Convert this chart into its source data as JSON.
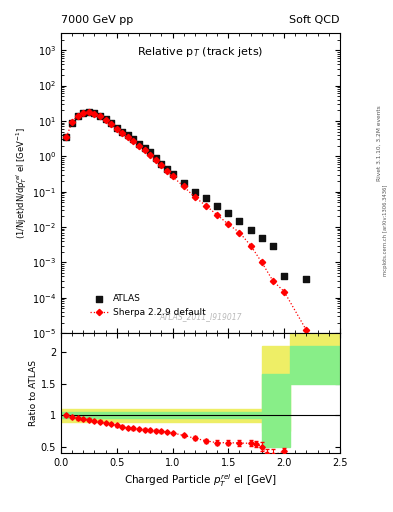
{
  "title_left": "7000 GeV pp",
  "title_right": "Soft QCD",
  "plot_title": "Relative p$_{T}$ (track jets)",
  "xlabel": "Charged Particle $p^{rel}_{T}$ el [GeV]",
  "ylabel_main": "(1/Njet)dN/dp$^{rel}_{T}$ el [GeV$^{-1}$]",
  "ylabel_ratio": "Ratio to ATLAS",
  "right_label1": "Rivet 3.1.10, 3.2M events",
  "right_label2": "mcplots.cern.ch [arXiv:1306.3436]",
  "watermark": "ATLAS_2011_I919017",
  "atlas_label": "ATLAS",
  "sherpa_label": "Sherpa 2.2.9 default",
  "atlas_x": [
    0.05,
    0.1,
    0.15,
    0.2,
    0.25,
    0.3,
    0.35,
    0.4,
    0.45,
    0.5,
    0.55,
    0.6,
    0.65,
    0.7,
    0.75,
    0.8,
    0.85,
    0.9,
    0.95,
    1.0,
    1.1,
    1.2,
    1.3,
    1.4,
    1.5,
    1.6,
    1.7,
    1.8,
    1.9,
    2.0,
    2.2
  ],
  "atlas_y": [
    3.5,
    9.0,
    14.0,
    17.0,
    17.5,
    16.5,
    14.0,
    11.0,
    8.5,
    6.5,
    5.0,
    4.0,
    3.0,
    2.2,
    1.7,
    1.3,
    0.9,
    0.6,
    0.45,
    0.32,
    0.18,
    0.1,
    0.065,
    0.04,
    0.025,
    0.015,
    0.008,
    0.005,
    0.003,
    0.0004,
    0.00035
  ],
  "sherpa_x": [
    0.05,
    0.1,
    0.15,
    0.2,
    0.25,
    0.3,
    0.35,
    0.4,
    0.45,
    0.5,
    0.55,
    0.6,
    0.65,
    0.7,
    0.75,
    0.8,
    0.85,
    0.9,
    0.95,
    1.0,
    1.1,
    1.2,
    1.3,
    1.4,
    1.5,
    1.6,
    1.7,
    1.8,
    1.9,
    2.0,
    2.2
  ],
  "sherpa_y": [
    3.5,
    9.5,
    14.0,
    17.0,
    17.5,
    16.0,
    13.5,
    10.5,
    8.0,
    6.0,
    4.5,
    3.5,
    2.7,
    2.0,
    1.5,
    1.1,
    0.8,
    0.55,
    0.38,
    0.27,
    0.14,
    0.07,
    0.04,
    0.022,
    0.012,
    0.007,
    0.003,
    0.001,
    0.0003,
    0.00015,
    1.2e-05
  ],
  "ratio_x": [
    0.05,
    0.1,
    0.15,
    0.2,
    0.25,
    0.3,
    0.35,
    0.4,
    0.45,
    0.5,
    0.55,
    0.6,
    0.65,
    0.7,
    0.75,
    0.8,
    0.85,
    0.9,
    0.95,
    1.0,
    1.1,
    1.2,
    1.3,
    1.4,
    1.5,
    1.6,
    1.7,
    1.75,
    1.8,
    1.85,
    1.9,
    2.0
  ],
  "ratio_y": [
    1.0,
    0.97,
    0.95,
    0.94,
    0.93,
    0.91,
    0.9,
    0.88,
    0.86,
    0.84,
    0.82,
    0.8,
    0.79,
    0.78,
    0.77,
    0.76,
    0.755,
    0.745,
    0.735,
    0.72,
    0.68,
    0.635,
    0.595,
    0.565,
    0.565,
    0.56,
    0.555,
    0.545,
    0.5,
    0.38,
    0.37,
    0.43
  ],
  "ratio_yerr": [
    0.02,
    0.02,
    0.02,
    0.02,
    0.02,
    0.02,
    0.02,
    0.02,
    0.02,
    0.02,
    0.02,
    0.02,
    0.02,
    0.02,
    0.02,
    0.02,
    0.02,
    0.02,
    0.02,
    0.02,
    0.02,
    0.03,
    0.03,
    0.04,
    0.04,
    0.04,
    0.05,
    0.05,
    0.07,
    0.08,
    0.1,
    0.05
  ],
  "ylim_main": [
    1e-05,
    3000.0
  ],
  "ylim_ratio": [
    0.4,
    2.3
  ],
  "xlim": [
    0.0,
    2.5
  ],
  "color_atlas": "#111111",
  "color_sherpa": "red",
  "bg_color": "white",
  "green_color": "#88ee88",
  "yellow_color": "#eeee66"
}
